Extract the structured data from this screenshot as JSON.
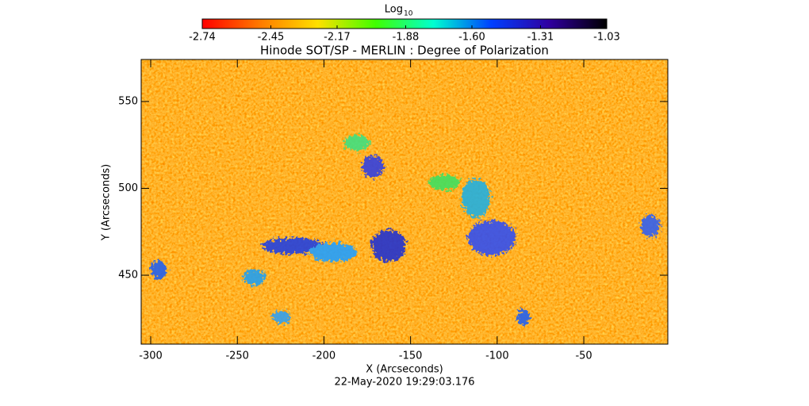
{
  "chart_data": {
    "type": "image",
    "title": "Hinode SOT/SP - MERLIN : Degree of Polarization",
    "x_label": "X (Arcseconds)",
    "y_label": "Y (Arcseconds)",
    "date_label": "22-May-2020 19:29:03.176",
    "xlim": [
      -305.5,
      -1.5
    ],
    "xticks": [
      -300,
      -250,
      -200,
      -150,
      -100,
      -50
    ],
    "ylim": [
      410.3,
      574.2
    ],
    "yticks": [
      450,
      500,
      550
    ],
    "colorbar": {
      "label": "Log",
      "label_sub": "10",
      "lim": [
        -2.74,
        -1.03
      ],
      "ticks": [
        -2.74,
        -2.45,
        -2.17,
        -1.88,
        {
          "value": -1.6,
          "label": "-1.60"
        },
        -1.31,
        -1.03
      ],
      "colormap": [
        "#ff0000",
        "#ff7a00",
        "#ffe000",
        "#40ff00",
        "#00ffd0",
        "#0040ff",
        "#3000a0",
        "#000000"
      ]
    }
  }
}
